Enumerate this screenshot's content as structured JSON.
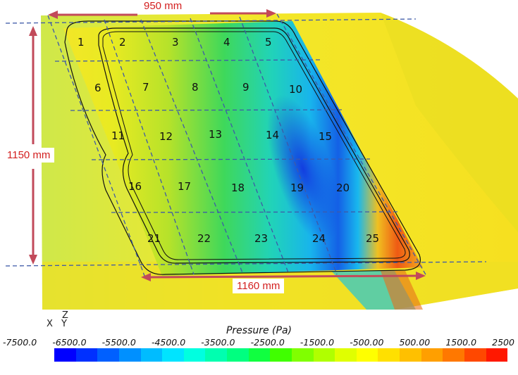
{
  "dimensions": {
    "top": "950 mm",
    "left": "1150 mm",
    "bottom": "1160 mm"
  },
  "cells": [
    "1",
    "2",
    "3",
    "4",
    "5",
    "6",
    "7",
    "8",
    "9",
    "10",
    "11",
    "12",
    "13",
    "14",
    "15",
    "16",
    "17",
    "18",
    "19",
    "20",
    "21",
    "22",
    "23",
    "24",
    "25"
  ],
  "axes": {
    "z": "Z",
    "x": "X",
    "y": "Y"
  },
  "legend": {
    "title": "Pressure (Pa)",
    "ticks": [
      "-7500.0",
      "-6500.0",
      "-5500.0",
      "-4500.0",
      "-3500.0",
      "-2500.0",
      "-1500.0",
      "-500.00",
      "500.00",
      "1500.0",
      "2500"
    ],
    "colors": [
      "#0000ff",
      "#0030ff",
      "#0060ff",
      "#0090ff",
      "#00bcff",
      "#00e4ff",
      "#00ffe0",
      "#00ffb0",
      "#00ff80",
      "#10ff40",
      "#40ff00",
      "#80ff00",
      "#b0ff00",
      "#e0ff00",
      "#ffff00",
      "#ffe000",
      "#ffc000",
      "#ff9f00",
      "#ff7800",
      "#ff4800",
      "#ff1800"
    ]
  },
  "colors": {
    "dimension_text": "#d32020",
    "dimension_arrow": "#c24a5a",
    "grid_dash": "#3e5aa8"
  }
}
